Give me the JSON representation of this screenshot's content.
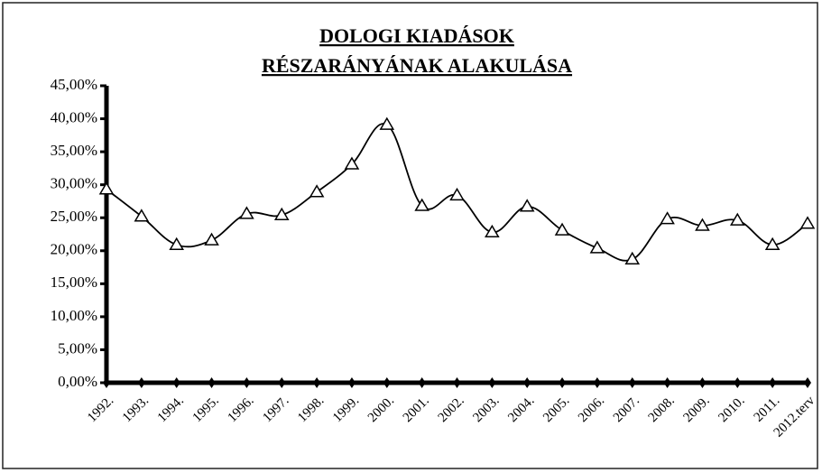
{
  "chart_data": {
    "type": "line",
    "title": [
      "DOLOGI KIADÁSOK",
      "RÉSZARÁNYÁNAK ALAKULÁSA"
    ],
    "categories": [
      "1992.",
      "1993.",
      "1994.",
      "1995.",
      "1996.",
      "1997.",
      "1998.",
      "1999.",
      "2000.",
      "2001.",
      "2002.",
      "2003.",
      "2004.",
      "2005.",
      "2006.",
      "2007.",
      "2008.",
      "2009.",
      "2010.",
      "2011.",
      "2012.terv"
    ],
    "values": [
      29.3,
      25.2,
      20.9,
      21.6,
      25.6,
      25.4,
      28.9,
      33.1,
      39.1,
      26.8,
      28.4,
      22.8,
      26.7,
      23.1,
      20.4,
      18.7,
      24.8,
      23.8,
      24.6,
      20.9,
      24.1
    ],
    "color": "#000000",
    "marker": "triangle",
    "ylim": [
      0,
      45
    ],
    "yticks": [
      {
        "value": 0,
        "label": "0,00%"
      },
      {
        "value": 5,
        "label": "5,00%"
      },
      {
        "value": 10,
        "label": "10,00%"
      },
      {
        "value": 15,
        "label": "15,00%"
      },
      {
        "value": 20,
        "label": "20,00%"
      },
      {
        "value": 25,
        "label": "25,00%"
      },
      {
        "value": 30,
        "label": "30,00%"
      },
      {
        "value": 35,
        "label": "35,00%"
      },
      {
        "value": 40,
        "label": "40,00%"
      },
      {
        "value": 45,
        "label": "45,00%"
      }
    ],
    "grid": false
  }
}
